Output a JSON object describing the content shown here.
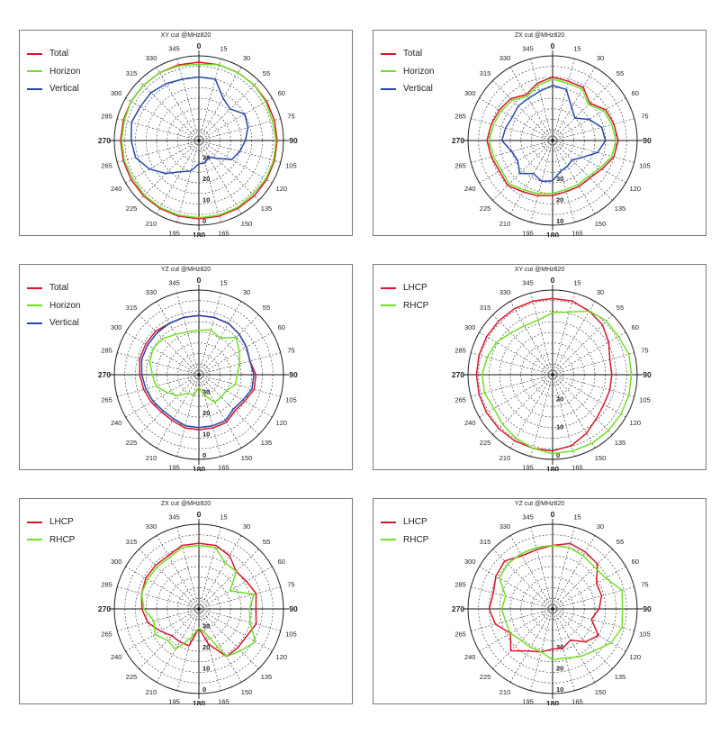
{
  "colors": {
    "Total": "#d8162a",
    "Horizon": "#6fe024",
    "Vertical": "#2447b0",
    "LHCP": "#d8162a",
    "RHCP": "#6fe024"
  },
  "chart_data": [
    {
      "type": "polar-line",
      "title": "XY cut @MHz820",
      "angle_labels": [
        "0",
        "15",
        "30",
        "55",
        "60",
        "75",
        "90",
        "105",
        "120",
        "135",
        "150",
        "165",
        "180",
        "195",
        "210",
        "225",
        "240",
        "265",
        "270",
        "285",
        "300",
        "315",
        "330",
        "345"
      ],
      "radial_labels": [
        "0",
        "10",
        "20",
        "30"
      ],
      "rlim": [
        -40,
        0
      ],
      "legend_position": "top-left",
      "series": [
        {
          "name": "Total",
          "values": [
            -3,
            -3,
            -3,
            -3,
            -3,
            -3,
            -3,
            -3,
            -3,
            -3,
            -3,
            -3,
            -3,
            -3,
            -3,
            -3,
            -3,
            -3,
            -3,
            -3,
            -3,
            -3,
            -3,
            -3
          ]
        },
        {
          "name": "Horizon",
          "values": [
            -4,
            -3,
            -3,
            -3,
            -3.5,
            -4,
            -3.5,
            -3.5,
            -3.5,
            -4,
            -3.5,
            -3.5,
            -3.5,
            -3.5,
            -3.5,
            -3.5,
            -4,
            -3.5,
            -3.5,
            -3.5,
            -3,
            -3,
            -3,
            -3.5
          ]
        },
        {
          "name": "Vertical",
          "values": [
            -10,
            -10,
            -17,
            -19,
            -15,
            -16,
            -18,
            -20,
            -22,
            -28,
            -31,
            -29,
            -29,
            -25,
            -23,
            -18,
            -13,
            -9,
            -8,
            -7,
            -8,
            -8,
            -9,
            -10
          ]
        }
      ]
    },
    {
      "type": "polar-line",
      "title": "ZX cut @MHz820",
      "angle_labels": [
        "0",
        "15",
        "30",
        "55",
        "60",
        "75",
        "90",
        "105",
        "120",
        "135",
        "150",
        "165",
        "180",
        "195",
        "210",
        "225",
        "240",
        "265",
        "270",
        "285",
        "300",
        "315",
        "330",
        "345"
      ],
      "radial_labels": [
        "10",
        "20",
        "30"
      ],
      "rlim": [
        -40,
        0
      ],
      "legend_position": "top-left",
      "series": [
        {
          "name": "Total",
          "values": [
            -10,
            -11,
            -11,
            -15,
            -11,
            -10,
            -9,
            -10,
            -13,
            -15,
            -15,
            -15,
            -14,
            -13,
            -12,
            -10,
            -11,
            -10,
            -9,
            -10,
            -11,
            -12,
            -15,
            -12
          ]
        },
        {
          "name": "Horizon",
          "values": [
            -11,
            -12,
            -12,
            -16,
            -12,
            -11,
            -10,
            -11,
            -14,
            -16,
            -16,
            -16,
            -15,
            -14,
            -13,
            -11,
            -12,
            -11,
            -10,
            -11,
            -12,
            -13,
            -16,
            -13
          ]
        },
        {
          "name": "Vertical",
          "values": [
            -14,
            -15,
            -22,
            -25,
            -20,
            -16,
            -15,
            -18,
            -24,
            -27,
            -26,
            -25,
            -21,
            -20,
            -22,
            -18,
            -21,
            -20,
            -16,
            -17,
            -18,
            -17,
            -17,
            -16
          ]
        }
      ]
    },
    {
      "type": "polar-line",
      "title": "YZ cut @MHz820",
      "angle_labels": [
        "0",
        "15",
        "30",
        "55",
        "60",
        "75",
        "90",
        "105",
        "120",
        "135",
        "150",
        "165",
        "180",
        "195",
        "210",
        "225",
        "240",
        "265",
        "270",
        "285",
        "300",
        "315",
        "330",
        "345"
      ],
      "radial_labels": [
        "0",
        "10",
        "20",
        "30"
      ],
      "rlim": [
        -40,
        0
      ],
      "legend_position": "top-left",
      "series": [
        {
          "name": "Total",
          "values": [
            -12,
            -12,
            -12,
            -13,
            -14,
            -15,
            -13,
            -13,
            -15,
            -16,
            -14,
            -14,
            -14,
            -14,
            -15,
            -15,
            -14,
            -13,
            -12,
            -11,
            -11,
            -11,
            -12,
            -12
          ]
        },
        {
          "name": "Horizon",
          "values": [
            -19,
            -18,
            -20,
            -15,
            -18,
            -20,
            -22,
            -22,
            -25,
            -25,
            -25,
            -30,
            -34,
            -30,
            -30,
            -26,
            -23,
            -19,
            -18,
            -16,
            -15,
            -16,
            -18,
            -19
          ]
        },
        {
          "name": "Vertical",
          "values": [
            -12,
            -12,
            -12,
            -13,
            -14,
            -15,
            -14,
            -14,
            -16,
            -17,
            -15,
            -15,
            -15,
            -15,
            -16,
            -16,
            -15,
            -14,
            -13,
            -12,
            -12,
            -12,
            -12,
            -12
          ]
        }
      ]
    },
    {
      "type": "polar-line",
      "title": "XY cut @MHz820",
      "angle_labels": [
        "0",
        "15",
        "30",
        "55",
        "60",
        "75",
        "90",
        "105",
        "120",
        "135",
        "150",
        "165",
        "180",
        "195",
        "210",
        "225",
        "240",
        "265",
        "270",
        "285",
        "300",
        "315",
        "330",
        "345"
      ],
      "radial_labels": [
        "0",
        "10",
        "20"
      ],
      "rlim": [
        -30,
        0
      ],
      "legend_position": "top-left",
      "series": [
        {
          "name": "LHCP",
          "values": [
            -3,
            -3,
            -4,
            -5,
            -7,
            -9,
            -9,
            -9,
            -9,
            -8,
            -6,
            -4,
            -3,
            -3,
            -3,
            -3,
            -3,
            -3,
            -3,
            -3,
            -3,
            -3,
            -3,
            -3
          ]
        },
        {
          "name": "RHCP",
          "values": [
            -8,
            -7,
            -4,
            -3,
            -3,
            -2,
            -2,
            -2,
            -2,
            -2,
            -2,
            -2,
            -2,
            -3,
            -4,
            -5,
            -6,
            -5,
            -5,
            -6,
            -7,
            -9,
            -10,
            -10
          ]
        }
      ]
    },
    {
      "type": "polar-line",
      "title": "ZX cut @MHz820",
      "angle_labels": [
        "0",
        "15",
        "30",
        "55",
        "60",
        "75",
        "90",
        "105",
        "120",
        "135",
        "150",
        "165",
        "180",
        "195",
        "210",
        "225",
        "240",
        "265",
        "270",
        "285",
        "300",
        "315",
        "330",
        "345"
      ],
      "radial_labels": [
        "0",
        "10",
        "20",
        "30"
      ],
      "rlim": [
        -40,
        0
      ],
      "legend_position": "top-left",
      "series": [
        {
          "name": "LHCP",
          "values": [
            -9,
            -9,
            -11,
            -15,
            -14,
            -12,
            -13,
            -12,
            -14,
            -14,
            -14,
            -23,
            -31,
            -22,
            -22,
            -22,
            -19,
            -15,
            -13,
            -12,
            -11,
            -11,
            -11,
            -9
          ]
        },
        {
          "name": "RHCP",
          "values": [
            -10,
            -10,
            -15,
            -15,
            -23,
            -13,
            -16,
            -15,
            -9,
            -12,
            -14,
            -28,
            -31,
            -26,
            -18,
            -19,
            -16,
            -18,
            -14,
            -12,
            -12,
            -12,
            -12,
            -10
          ]
        }
      ]
    },
    {
      "type": "polar-line",
      "title": "YZ cut @MHz820",
      "angle_labels": [
        "0",
        "15",
        "30",
        "55",
        "60",
        "75",
        "90",
        "105",
        "120",
        "135",
        "150",
        "165",
        "180",
        "195",
        "210",
        "225",
        "240",
        "265",
        "270",
        "285",
        "300",
        "315",
        "330",
        "345"
      ],
      "radial_labels": [
        "10",
        "20",
        "30"
      ],
      "rlim": [
        -40,
        0
      ],
      "legend_position": "top-left",
      "series": [
        {
          "name": "LHCP",
          "values": [
            -10,
            -8,
            -9,
            -10,
            -16,
            -16,
            -18,
            -21,
            -15,
            -18,
            -23,
            -21,
            -21,
            -19,
            -17,
            -12,
            -17,
            -12,
            -10,
            -11,
            -9,
            -8,
            -11,
            -11
          ]
        },
        {
          "name": "RHCP",
          "values": [
            -10,
            -10,
            -11,
            -12,
            -11,
            -6,
            -7,
            -6,
            -8,
            -12,
            -14,
            -16,
            -16,
            -19,
            -19,
            -19,
            -17,
            -17,
            -16,
            -17,
            -11,
            -10,
            -10,
            -10
          ]
        }
      ]
    }
  ]
}
